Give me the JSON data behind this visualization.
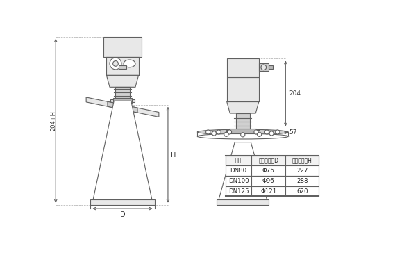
{
  "bg_color": "#ffffff",
  "lc": "#606060",
  "lc2": "#888888",
  "fc_light": "#e8e8e8",
  "fc_mid": "#d0d0d0",
  "fc_dark": "#b8b8b8",
  "table_header": [
    "法兰",
    "喇叭口直径D",
    "喇叭口高度H"
  ],
  "table_rows": [
    [
      "DN80",
      "Φ76",
      "227"
    ],
    [
      "DN100",
      "Φ96",
      "288"
    ],
    [
      "DN125",
      "Φ121",
      "620"
    ]
  ],
  "dim_204": "204",
  "dim_57": "57",
  "dim_H": "H",
  "dim_204H": "204+H",
  "dim_D": "D",
  "fig_width": 5.69,
  "fig_height": 3.64,
  "lw": 0.8
}
